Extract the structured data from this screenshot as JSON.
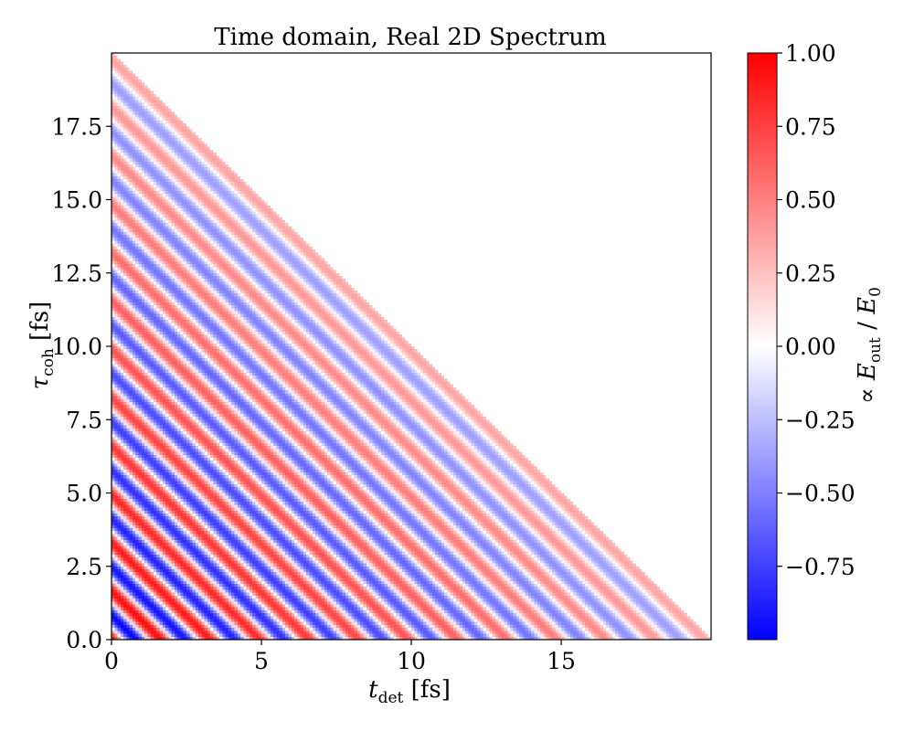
{
  "chart_data": {
    "type": "heatmap",
    "title": "Time domain, Real 2D Spectrum",
    "xlabel": {
      "symbol": "t",
      "subscript": "det",
      "unit": "[fs]"
    },
    "ylabel": {
      "symbol": "τ",
      "subscript": "coh",
      "unit": "[fs]"
    },
    "colorbar_label": {
      "prefix": "∝ ",
      "symbol1": "E",
      "sub1": "out",
      "slash": " / ",
      "symbol2": "E",
      "sub2": "0"
    },
    "xlim": [
      0,
      20
    ],
    "ylim": [
      0,
      20
    ],
    "x_ticks": [
      0,
      5,
      10,
      15
    ],
    "x_tick_labels": [
      "0",
      "5",
      "10",
      "15"
    ],
    "y_ticks": [
      0,
      2.5,
      5,
      7.5,
      10,
      12.5,
      15,
      17.5
    ],
    "y_tick_labels": [
      "0.0",
      "2.5",
      "5.0",
      "7.5",
      "10.0",
      "12.5",
      "15.0",
      "17.5"
    ],
    "colorbar_ticks": [
      1.0,
      0.75,
      0.5,
      0.25,
      0.0,
      -0.25,
      -0.5,
      -0.75
    ],
    "colorbar_tick_labels": [
      "1.00",
      "0.75",
      "0.50",
      "0.25",
      "0.00",
      "−0.25",
      "−0.50",
      "−0.75"
    ],
    "value_range": [
      -1.0,
      1.0
    ],
    "colormap": "bwr",
    "grid_step_fs": 0.1,
    "valid_region": "t_det + tau_coh <= 20",
    "field": {
      "form": "A * cos(2*pi*(t_det + tau_coh)/T)",
      "period_fs": 1.65,
      "amplitude_start": 1.0,
      "amplitude_end": 0.35,
      "decay_variable": "t_det + tau_coh"
    },
    "colors": {
      "negative": "#0000ff",
      "zero": "#ffffff",
      "positive": "#ff0000"
    }
  }
}
